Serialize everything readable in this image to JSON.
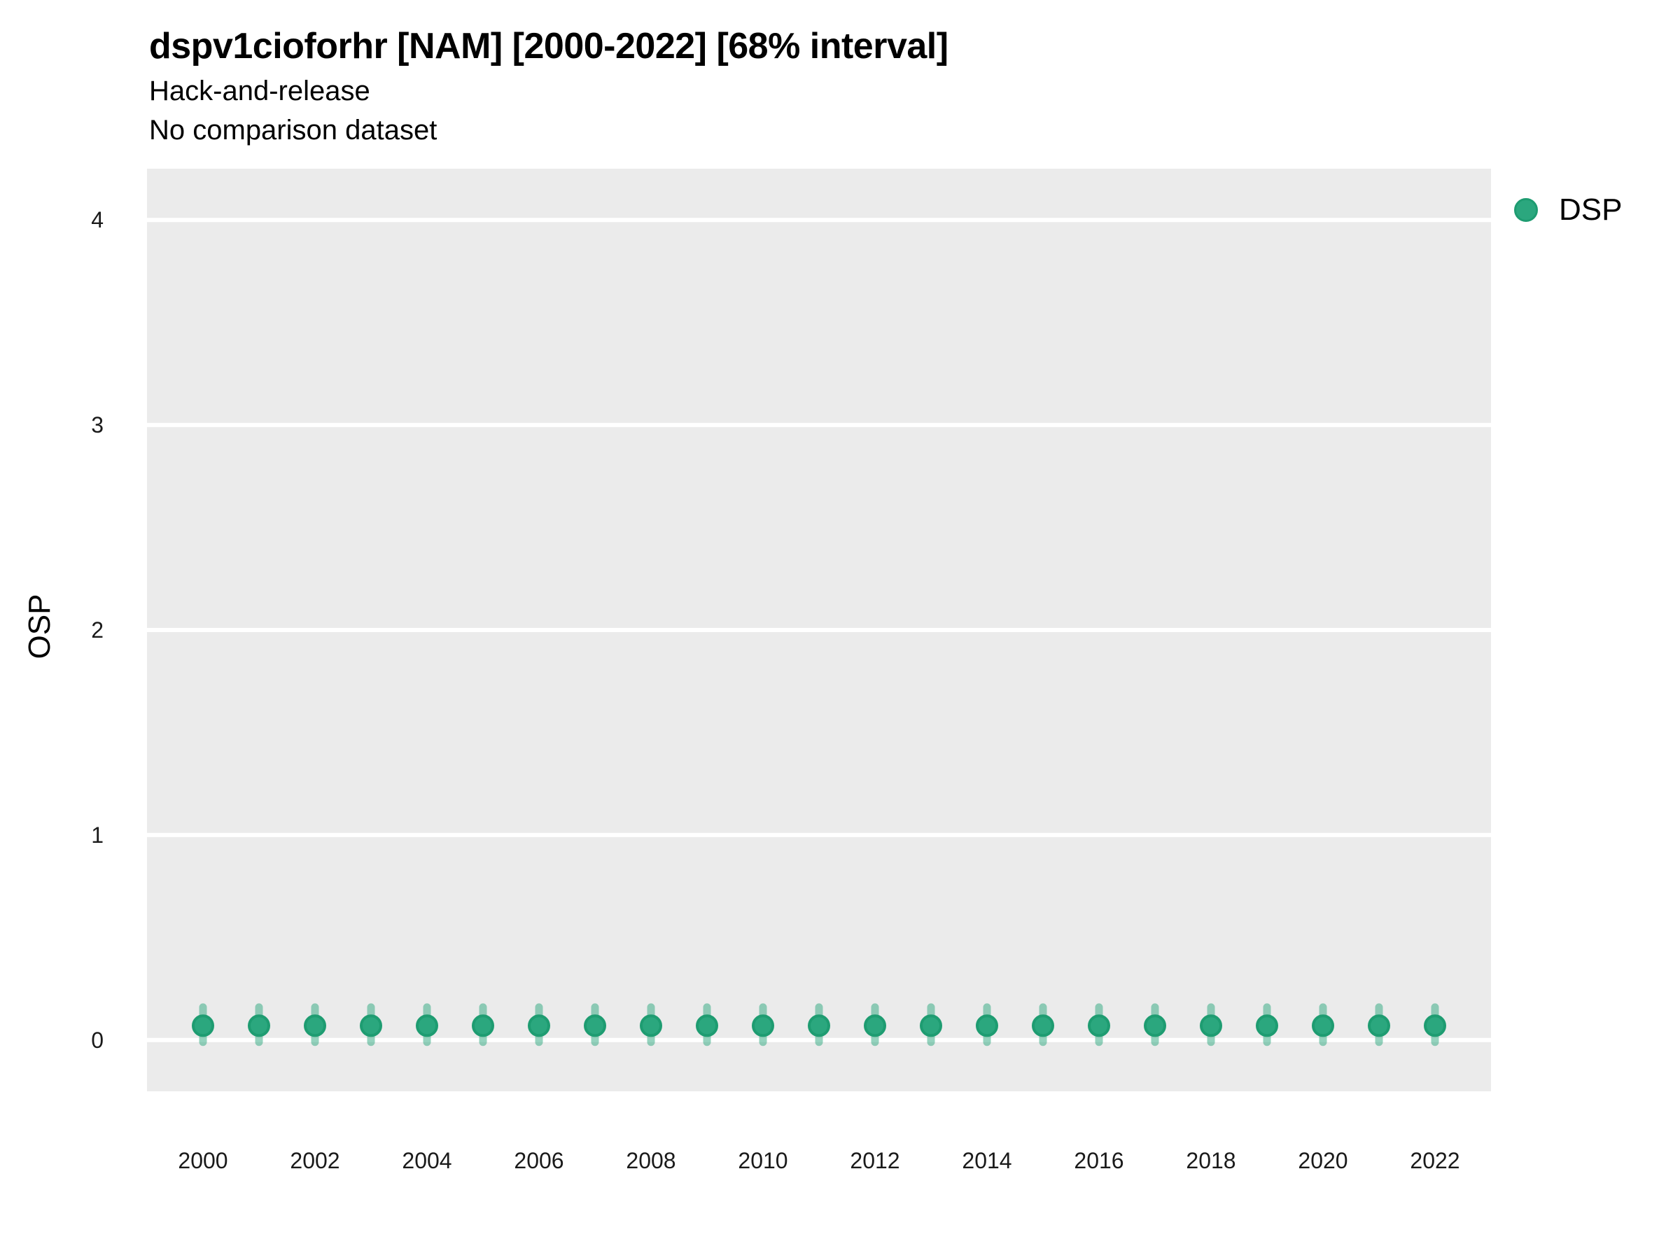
{
  "colors": {
    "background": "#FFFFFF",
    "panel": "#EBEBEB",
    "gridline": "#FFFFFF",
    "point_fill": "#2BA77E",
    "point_stroke": "#1E9C71",
    "interval_band": "rgba(44,167,126,0.5)",
    "title_text": "#000000",
    "tick_text": "#1A1A1A"
  },
  "chart_data": {
    "type": "scatter",
    "title": "dspv1cioforhr [NAM] [2000-2022] [68% interval]",
    "subtitle": "Hack-and-release",
    "note": "No comparison dataset",
    "xlabel": "",
    "ylabel": "OSP",
    "xlim": [
      1999,
      2023
    ],
    "ylim": [
      -0.25,
      4.25
    ],
    "yticks": [
      0,
      1,
      2,
      3,
      4
    ],
    "xticks": [
      2000,
      2002,
      2004,
      2006,
      2008,
      2010,
      2012,
      2014,
      2016,
      2018,
      2020,
      2022
    ],
    "grid": "major horizontal white gridlines on gray panel, no vertical or minor gridlines",
    "legend_position": "right",
    "series": [
      {
        "name": "DSP",
        "marker": "circle",
        "interval": "68%",
        "x": [
          2000,
          2001,
          2002,
          2003,
          2004,
          2005,
          2006,
          2007,
          2008,
          2009,
          2010,
          2011,
          2012,
          2013,
          2014,
          2015,
          2016,
          2017,
          2018,
          2019,
          2020,
          2021,
          2022
        ],
        "y": [
          0.07,
          0.07,
          0.07,
          0.07,
          0.07,
          0.07,
          0.07,
          0.07,
          0.07,
          0.07,
          0.07,
          0.07,
          0.07,
          0.07,
          0.07,
          0.07,
          0.07,
          0.07,
          0.07,
          0.07,
          0.07,
          0.07,
          0.07
        ],
        "lo": [
          -0.01,
          -0.01,
          -0.01,
          -0.01,
          -0.01,
          -0.01,
          -0.01,
          -0.01,
          -0.01,
          -0.01,
          -0.01,
          -0.01,
          -0.01,
          -0.01,
          -0.01,
          -0.01,
          -0.01,
          -0.01,
          -0.01,
          -0.01,
          -0.01,
          -0.01,
          -0.01
        ],
        "hi": [
          0.16,
          0.16,
          0.16,
          0.16,
          0.16,
          0.16,
          0.16,
          0.16,
          0.16,
          0.16,
          0.16,
          0.16,
          0.16,
          0.16,
          0.16,
          0.16,
          0.16,
          0.16,
          0.16,
          0.16,
          0.16,
          0.16,
          0.16
        ]
      }
    ]
  }
}
